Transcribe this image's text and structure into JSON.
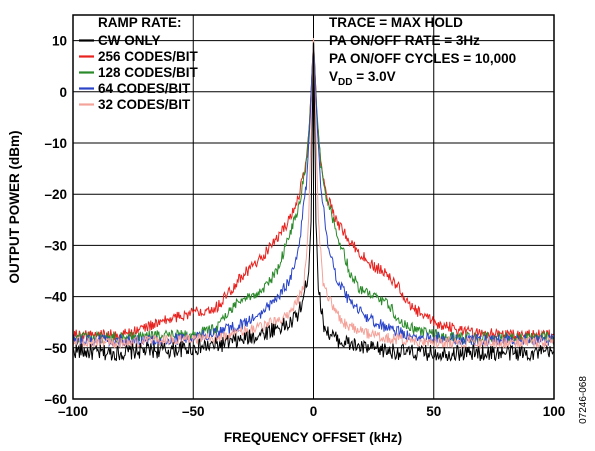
{
  "chart_data": {
    "type": "line",
    "xlabel": "FREQUENCY OFFSET (kHz)",
    "ylabel": "OUTPUT POWER (dBm)",
    "xlim": [
      -100,
      100
    ],
    "ylim": [
      -60,
      15
    ],
    "x_ticks": [
      -100,
      -50,
      0,
      50,
      100
    ],
    "x_tick_labels": [
      "–100",
      "–50",
      "0",
      "50",
      "100"
    ],
    "y_ticks": [
      10,
      0,
      -10,
      -20,
      -30,
      -40,
      -50,
      -60
    ],
    "y_tick_labels": [
      "10",
      "0",
      "–10",
      "–20",
      "–30",
      "–40",
      "–50",
      "–60"
    ],
    "grid": true,
    "legend_title": "RAMP RATE:",
    "legend_position": "top-left",
    "annotations": [
      {
        "text": "TRACE = MAX HOLD"
      },
      {
        "text": "PA ON/OFF RATE = 3Hz"
      },
      {
        "text": "PA ON/OFF CYCLES = 10,000"
      },
      {
        "text": "V",
        "sub": "DD",
        "suffix": " = 3.0V"
      }
    ],
    "figure_id": "07246-068",
    "series": [
      {
        "name": "CW ONLY",
        "color": "#000000",
        "points": [
          [
            -100,
            -50.5
          ],
          [
            -90,
            -51
          ],
          [
            -80,
            -51
          ],
          [
            -70,
            -50.5
          ],
          [
            -60,
            -50.5
          ],
          [
            -50,
            -50
          ],
          [
            -40,
            -49.5
          ],
          [
            -30,
            -48.5
          ],
          [
            -20,
            -47
          ],
          [
            -15,
            -46
          ],
          [
            -10,
            -45.5
          ],
          [
            -6,
            -43
          ],
          [
            -4,
            -40
          ],
          [
            -2,
            -35
          ],
          [
            -1,
            -25
          ],
          [
            -0.5,
            -5
          ],
          [
            0,
            10
          ],
          [
            0.5,
            -5
          ],
          [
            1,
            -25
          ],
          [
            2,
            -38
          ],
          [
            4,
            -45
          ],
          [
            6,
            -47
          ],
          [
            10,
            -48.5
          ],
          [
            20,
            -50
          ],
          [
            30,
            -50.5
          ],
          [
            40,
            -51
          ],
          [
            50,
            -51
          ],
          [
            60,
            -51
          ],
          [
            70,
            -51
          ],
          [
            80,
            -51
          ],
          [
            90,
            -51
          ],
          [
            100,
            -51
          ]
        ]
      },
      {
        "name": "256 CODES/BIT",
        "color": "#e8231f",
        "points": [
          [
            -100,
            -47.5
          ],
          [
            -80,
            -47.5
          ],
          [
            -70,
            -46
          ],
          [
            -60,
            -44.5
          ],
          [
            -50,
            -43
          ],
          [
            -40,
            -42
          ],
          [
            -35,
            -39
          ],
          [
            -30,
            -36
          ],
          [
            -25,
            -34
          ],
          [
            -20,
            -31.5
          ],
          [
            -15,
            -28.5
          ],
          [
            -10,
            -25
          ],
          [
            -6,
            -20
          ],
          [
            -3,
            -14
          ],
          [
            -1.5,
            -5
          ],
          [
            0,
            10
          ],
          [
            1.5,
            -5
          ],
          [
            3,
            -14
          ],
          [
            6,
            -21
          ],
          [
            10,
            -25.5
          ],
          [
            15,
            -29
          ],
          [
            20,
            -32
          ],
          [
            25,
            -34
          ],
          [
            30,
            -35.5
          ],
          [
            35,
            -38
          ],
          [
            40,
            -42
          ],
          [
            50,
            -45
          ],
          [
            60,
            -46.5
          ],
          [
            70,
            -47
          ],
          [
            80,
            -47.5
          ],
          [
            90,
            -47.5
          ],
          [
            100,
            -47.5
          ]
        ]
      },
      {
        "name": "128 CODES/BIT",
        "color": "#2a8a2a",
        "points": [
          [
            -100,
            -48
          ],
          [
            -80,
            -48
          ],
          [
            -60,
            -47.5
          ],
          [
            -50,
            -47.5
          ],
          [
            -40,
            -46
          ],
          [
            -35,
            -43
          ],
          [
            -30,
            -40
          ],
          [
            -25,
            -40
          ],
          [
            -20,
            -38
          ],
          [
            -15,
            -35
          ],
          [
            -10,
            -28
          ],
          [
            -6,
            -22
          ],
          [
            -3,
            -14
          ],
          [
            -1.5,
            -5
          ],
          [
            0,
            10
          ],
          [
            1.5,
            -5
          ],
          [
            3,
            -14
          ],
          [
            6,
            -22
          ],
          [
            10,
            -28
          ],
          [
            15,
            -35
          ],
          [
            20,
            -39
          ],
          [
            25,
            -40
          ],
          [
            30,
            -41
          ],
          [
            35,
            -44
          ],
          [
            40,
            -46
          ],
          [
            50,
            -47.5
          ],
          [
            60,
            -48
          ],
          [
            80,
            -48
          ],
          [
            100,
            -48
          ]
        ]
      },
      {
        "name": "64 CODES/BIT",
        "color": "#2a44c8",
        "points": [
          [
            -100,
            -48.5
          ],
          [
            -80,
            -48.5
          ],
          [
            -60,
            -48.5
          ],
          [
            -50,
            -48
          ],
          [
            -40,
            -47
          ],
          [
            -30,
            -45.5
          ],
          [
            -22,
            -43.5
          ],
          [
            -15,
            -40
          ],
          [
            -10,
            -37
          ],
          [
            -6,
            -30
          ],
          [
            -3,
            -18
          ],
          [
            -1.5,
            -6
          ],
          [
            0,
            10
          ],
          [
            1.5,
            -6
          ],
          [
            3,
            -18
          ],
          [
            6,
            -30
          ],
          [
            10,
            -37
          ],
          [
            15,
            -41
          ],
          [
            22,
            -44
          ],
          [
            30,
            -46
          ],
          [
            40,
            -47.5
          ],
          [
            50,
            -48
          ],
          [
            60,
            -48.5
          ],
          [
            80,
            -48.5
          ],
          [
            100,
            -48.5
          ]
        ]
      },
      {
        "name": "32 CODES/BIT",
        "color": "#f4a39a",
        "points": [
          [
            -100,
            -49
          ],
          [
            -80,
            -49
          ],
          [
            -60,
            -48.5
          ],
          [
            -50,
            -48.5
          ],
          [
            -40,
            -48
          ],
          [
            -30,
            -47
          ],
          [
            -20,
            -45.5
          ],
          [
            -12,
            -44
          ],
          [
            -8,
            -42
          ],
          [
            -4,
            -38
          ],
          [
            -2,
            -25
          ],
          [
            -1,
            -8
          ],
          [
            0,
            10
          ],
          [
            1,
            -8
          ],
          [
            2,
            -25
          ],
          [
            4,
            -38
          ],
          [
            8,
            -42
          ],
          [
            12,
            -45
          ],
          [
            20,
            -47
          ],
          [
            30,
            -48
          ],
          [
            40,
            -48.5
          ],
          [
            60,
            -49
          ],
          [
            80,
            -49
          ],
          [
            100,
            -49
          ]
        ]
      }
    ]
  }
}
